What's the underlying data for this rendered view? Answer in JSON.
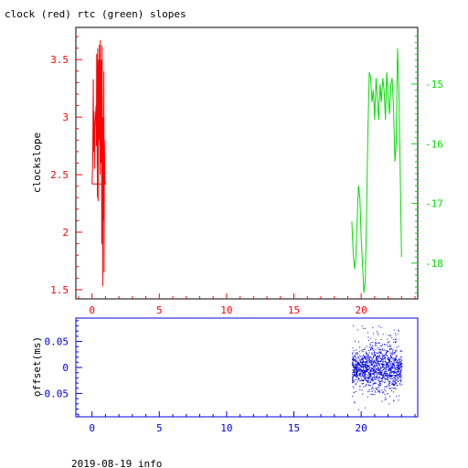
{
  "title": "clock (red) rtc (green) slopes",
  "footer": "2019-08-19 info",
  "colors": {
    "clock": "#ff0000",
    "rtc": "#00e000",
    "offset": "#0000e0",
    "axis_black": "#000000"
  },
  "chart_data": [
    {
      "type": "line",
      "title": "clock (red) rtc (green) slopes",
      "xlim": [
        -1.2,
        24.2
      ],
      "x_ticks": [
        0,
        5,
        10,
        15,
        20
      ],
      "x_tick_labels": [
        "0",
        "5",
        "10",
        "15",
        "20"
      ],
      "ylabel": "clockslope",
      "ylim_left": [
        1.42,
        3.78
      ],
      "y_ticks_left": [
        1.5,
        2,
        2.5,
        3,
        3.5
      ],
      "y_tick_labels_left": [
        "1.5",
        "2",
        "2.5",
        "3",
        "3.5"
      ],
      "ylim_right": [
        -18.6,
        -14.05
      ],
      "y_ticks_right": [
        -18,
        -17,
        -16,
        -15
      ],
      "y_tick_labels_right": [
        "-18",
        "-17",
        "-16",
        "-15"
      ],
      "series": [
        {
          "axis": "left",
          "x": [
            0.0,
            0.05,
            0.1,
            0.12,
            0.15,
            0.18,
            0.2,
            0.25,
            0.3,
            0.32,
            0.35,
            0.4,
            0.42,
            0.45,
            0.5,
            0.52,
            0.55,
            0.6,
            0.62,
            0.65,
            0.7,
            0.72,
            0.75,
            0.8,
            0.82,
            0.85,
            0.88,
            0.9,
            0.92,
            0.95,
            1.0,
            0.0
          ],
          "y": [
            2.42,
            2.6,
            3.33,
            2.7,
            3.05,
            2.55,
            2.9,
            3.0,
            3.1,
            2.75,
            3.55,
            2.3,
            3.6,
            2.27,
            3.5,
            2.8,
            3.63,
            2.5,
            3.67,
            2.6,
            3.5,
            1.9,
            3.62,
            1.53,
            3.0,
            2.1,
            3.4,
            1.65,
            2.8,
            2.45,
            2.42,
            2.42
          ]
        },
        {
          "axis": "right",
          "x": [
            19.3,
            19.4,
            19.5,
            19.6,
            19.7,
            19.8,
            19.9,
            20.0,
            20.1,
            20.2,
            20.3,
            20.4,
            20.5,
            20.6,
            20.7,
            20.8,
            20.9,
            21.0,
            21.1,
            21.2,
            21.3,
            21.4,
            21.5,
            21.6,
            21.7,
            21.8,
            21.9,
            22.0,
            22.1,
            22.2,
            22.3,
            22.4,
            22.5,
            22.6,
            22.7,
            22.8,
            22.9,
            23.0
          ],
          "y": [
            -17.3,
            -17.8,
            -18.1,
            -17.9,
            -17.3,
            -16.7,
            -16.9,
            -17.6,
            -18.0,
            -18.5,
            -18.3,
            -17.2,
            -15.8,
            -14.8,
            -14.9,
            -15.3,
            -15.1,
            -15.6,
            -14.9,
            -15.2,
            -15.6,
            -15.0,
            -15.3,
            -14.9,
            -15.1,
            -15.6,
            -14.8,
            -15.2,
            -15.5,
            -15.0,
            -14.9,
            -15.4,
            -16.3,
            -16.0,
            -14.4,
            -15.1,
            -16.5,
            -17.9
          ]
        }
      ]
    },
    {
      "type": "scatter",
      "ylabel": "offset(ms)",
      "xlim": [
        -1.2,
        24.2
      ],
      "x_ticks": [
        0,
        5,
        10,
        15,
        20
      ],
      "x_tick_labels": [
        "0",
        "5",
        "10",
        "15",
        "20"
      ],
      "ylim": [
        -0.095,
        0.095
      ],
      "y_ticks": [
        -0.05,
        0,
        0.05
      ],
      "y_tick_labels": [
        "-0.05",
        "0",
        "0.05"
      ],
      "x_range": [
        19.3,
        23.0
      ],
      "y_range": [
        -0.09,
        0.09
      ]
    }
  ]
}
